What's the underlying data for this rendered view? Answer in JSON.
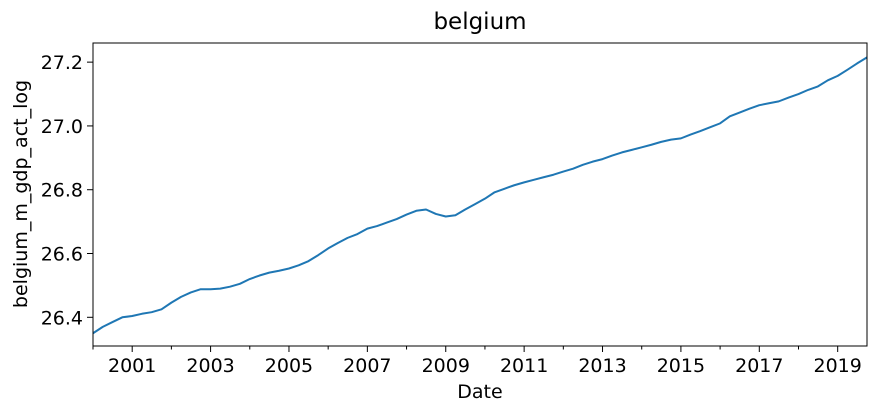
{
  "chart_data": {
    "type": "line",
    "title": "belgium",
    "xlabel": "Date",
    "ylabel": "belgium_m_gdp_act_log",
    "xlim": [
      "2000-01-01",
      "2019-10-01"
    ],
    "ylim": [
      26.31,
      27.26
    ],
    "x_ticks": [
      2001,
      2003,
      2005,
      2007,
      2009,
      2011,
      2013,
      2015,
      2017,
      2019
    ],
    "x_tick_labels": [
      "2001",
      "2003",
      "2005",
      "2007",
      "2009",
      "2011",
      "2013",
      "2015",
      "2017",
      "2019"
    ],
    "y_ticks": [
      26.4,
      26.6,
      26.8,
      27.0,
      27.2
    ],
    "y_tick_labels": [
      "26.4",
      "26.6",
      "26.8",
      "27.0",
      "27.2"
    ],
    "grid": false,
    "legend": "none",
    "colors": {
      "line": "#1f77b4"
    },
    "series": [
      {
        "x": [
          "2000-01-01",
          "2000-04-01",
          "2000-07-01",
          "2000-10-01",
          "2001-01-01",
          "2001-04-01",
          "2001-07-01",
          "2001-10-01",
          "2002-01-01",
          "2002-04-01",
          "2002-07-01",
          "2002-10-01",
          "2003-01-01",
          "2003-04-01",
          "2003-07-01",
          "2003-10-01",
          "2004-01-01",
          "2004-04-01",
          "2004-07-01",
          "2004-10-01",
          "2005-01-01",
          "2005-04-01",
          "2005-07-01",
          "2005-10-01",
          "2006-01-01",
          "2006-04-01",
          "2006-07-01",
          "2006-10-01",
          "2007-01-01",
          "2007-04-01",
          "2007-07-01",
          "2007-10-01",
          "2008-01-01",
          "2008-04-01",
          "2008-07-01",
          "2008-10-01",
          "2009-01-01",
          "2009-04-01",
          "2009-07-01",
          "2009-10-01",
          "2010-01-01",
          "2010-04-01",
          "2010-07-01",
          "2010-10-01",
          "2011-01-01",
          "2011-04-01",
          "2011-07-01",
          "2011-10-01",
          "2012-01-01",
          "2012-04-01",
          "2012-07-01",
          "2012-10-01",
          "2013-01-01",
          "2013-04-01",
          "2013-07-01",
          "2013-10-01",
          "2014-01-01",
          "2014-04-01",
          "2014-07-01",
          "2014-10-01",
          "2015-01-01",
          "2015-04-01",
          "2015-07-01",
          "2015-10-01",
          "2016-01-01",
          "2016-04-01",
          "2016-07-01",
          "2016-10-01",
          "2017-01-01",
          "2017-04-01",
          "2017-07-01",
          "2017-10-01",
          "2018-01-01",
          "2018-04-01",
          "2018-07-01",
          "2018-10-01",
          "2019-01-01",
          "2019-04-01",
          "2019-07-01",
          "2019-10-01"
        ],
        "values": [
          26.35,
          26.37,
          26.385,
          26.4,
          26.404,
          26.411,
          26.416,
          26.425,
          26.446,
          26.464,
          26.478,
          26.488,
          26.488,
          26.49,
          26.496,
          26.505,
          26.52,
          26.531,
          26.54,
          26.546,
          26.553,
          26.563,
          26.576,
          26.595,
          26.616,
          26.633,
          26.649,
          26.661,
          26.678,
          26.686,
          26.697,
          26.708,
          26.722,
          26.734,
          26.738,
          26.724,
          26.716,
          26.72,
          26.738,
          26.755,
          26.772,
          26.792,
          26.803,
          26.814,
          26.823,
          26.831,
          26.839,
          26.847,
          26.857,
          26.866,
          26.878,
          26.888,
          26.896,
          26.907,
          26.917,
          26.925,
          26.933,
          26.941,
          26.95,
          26.957,
          26.961,
          26.973,
          26.984,
          26.996,
          27.008,
          27.03,
          27.042,
          27.054,
          27.065,
          27.071,
          27.077,
          27.089,
          27.1,
          27.113,
          27.124,
          27.143,
          27.157,
          27.176,
          27.196,
          27.215
        ]
      }
    ]
  }
}
